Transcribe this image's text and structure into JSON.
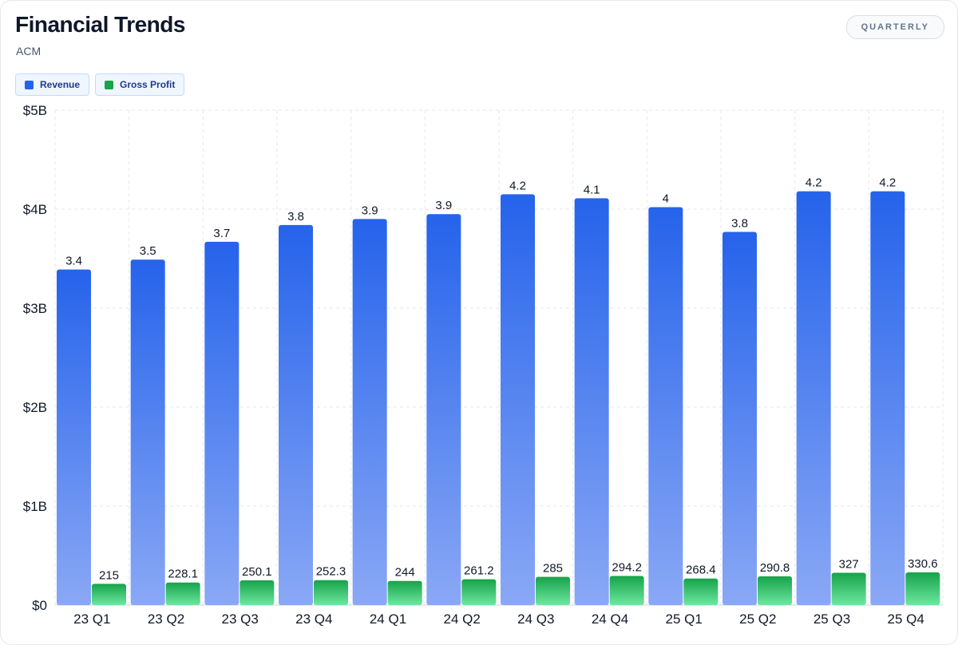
{
  "header": {
    "title": "Financial Trends",
    "subtitle": "ACM",
    "period_button": "QUARTERLY"
  },
  "colors": {
    "revenue_top": "#2563eb",
    "revenue_bottom": "#8aa8f5",
    "profit_top": "#16a34a",
    "profit_bottom": "#6ee7a0",
    "grid": "#e5e7eb"
  },
  "chart_data": {
    "type": "bar",
    "title": "Financial Trends",
    "subtitle": "ACM",
    "categories": [
      "23 Q1",
      "23 Q2",
      "23 Q3",
      "23 Q4",
      "24 Q1",
      "24 Q2",
      "24 Q3",
      "24 Q4",
      "25 Q1",
      "25 Q2",
      "25 Q3",
      "25 Q4"
    ],
    "y_ticks": [
      "$0",
      "$1B",
      "$2B",
      "$3B",
      "$4B",
      "$5B"
    ],
    "ylim": [
      0,
      5
    ],
    "grid": true,
    "legend_position": "top-left",
    "series": [
      {
        "name": "Revenue",
        "unit": "B",
        "values": [
          3.39,
          3.49,
          3.67,
          3.84,
          3.9,
          3.95,
          4.15,
          4.11,
          4.02,
          3.77,
          4.18,
          4.18
        ],
        "labels": [
          "3.4",
          "3.5",
          "3.7",
          "3.8",
          "3.9",
          "3.9",
          "4.2",
          "4.1",
          "4",
          "3.8",
          "4.2",
          "4.2"
        ]
      },
      {
        "name": "Gross Profit",
        "unit": "M",
        "values": [
          215,
          228.1,
          250.1,
          252.3,
          244,
          261.2,
          285,
          294.2,
          268.4,
          290.8,
          327,
          330.6
        ],
        "labels": [
          "215",
          "228.1",
          "250.1",
          "252.3",
          "244",
          "261.2",
          "285",
          "294.2",
          "268.4",
          "290.8",
          "327",
          "330.6"
        ]
      }
    ]
  }
}
